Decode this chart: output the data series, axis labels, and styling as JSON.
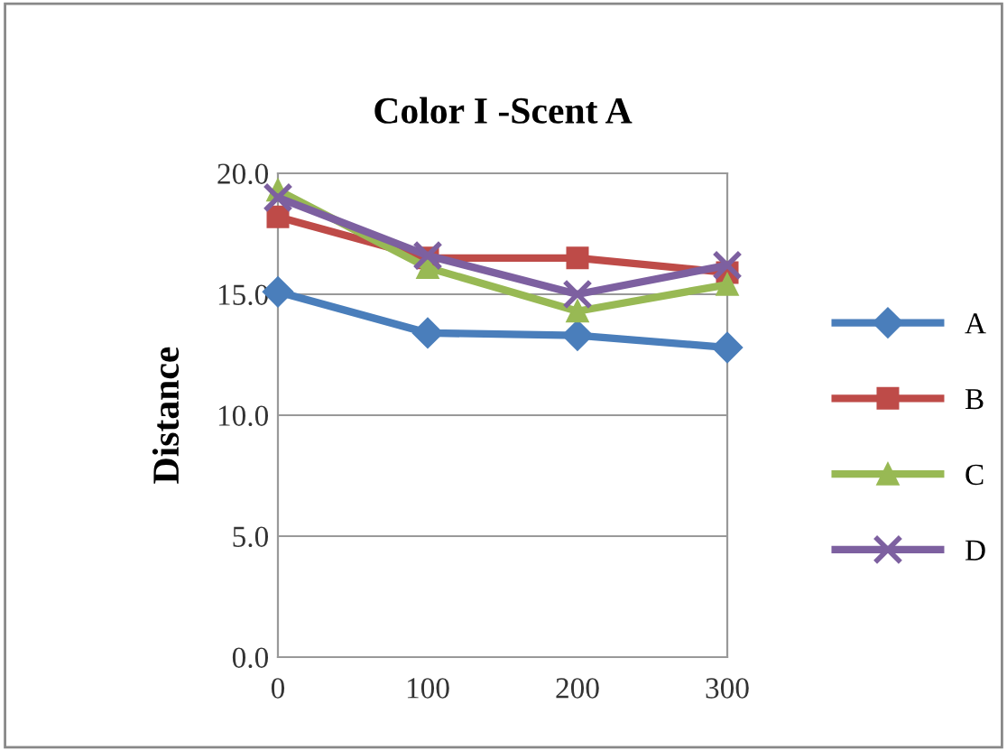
{
  "chart_data": {
    "type": "line",
    "title": "Color I -Scent A",
    "ylabel": "Distance",
    "x": [
      0,
      100,
      200,
      300
    ],
    "series": [
      {
        "name": "A",
        "color": "#4a7ebb",
        "values": [
          15.1,
          13.4,
          13.3,
          12.8
        ],
        "marker": "diamond"
      },
      {
        "name": "B",
        "color": "#be4b48",
        "values": [
          18.2,
          16.5,
          16.5,
          15.9
        ],
        "marker": "square"
      },
      {
        "name": "C",
        "color": "#98b954",
        "values": [
          19.3,
          16.1,
          14.3,
          15.4
        ],
        "marker": "triangle"
      },
      {
        "name": "D",
        "color": "#7d60a0",
        "values": [
          19.0,
          16.6,
          15.0,
          16.2
        ],
        "marker": "cross"
      }
    ],
    "xlim": [
      0,
      300
    ],
    "xticks": [
      0,
      100,
      200,
      300
    ],
    "ylim": [
      0,
      20
    ],
    "yticks": [
      {
        "value": 0,
        "label": "0.0"
      },
      {
        "value": 5,
        "label": "5.0"
      },
      {
        "value": 10,
        "label": "10.0"
      },
      {
        "value": 15,
        "label": "15.0"
      },
      {
        "value": 20,
        "label": "20.0"
      }
    ],
    "grid": "y",
    "legend": "right",
    "line_style": "solid"
  }
}
